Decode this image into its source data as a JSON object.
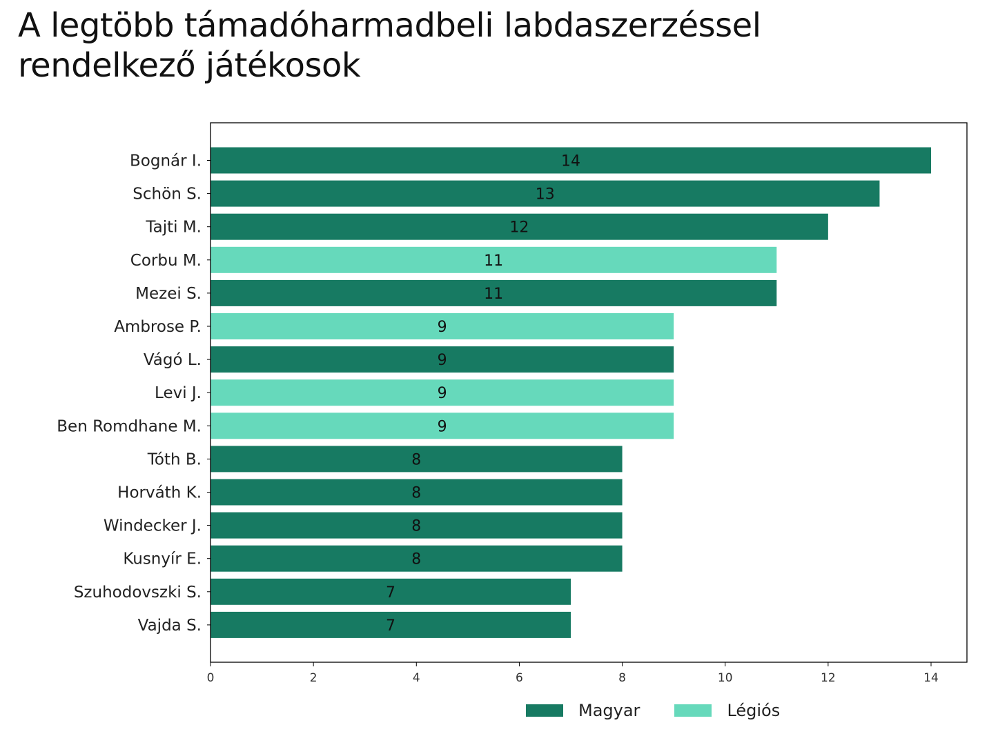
{
  "title_lines": [
    "A legtöbb támadóharmadbeli labdaszerzéssel",
    "rendelkező játékosok"
  ],
  "colors": {
    "Magyar": "#177a62",
    "Légiós": "#66d9bb",
    "axis": "#000000"
  },
  "chart_data": {
    "type": "bar",
    "orientation": "horizontal",
    "title": "A legtöbb támadóharmadbeli labdaszerzéssel rendelkező játékosok",
    "xlabel": "",
    "ylabel": "",
    "xlim": [
      0,
      14.7
    ],
    "xticks": [
      0,
      2,
      4,
      6,
      8,
      10,
      12,
      14
    ],
    "grid": false,
    "legend_position": "bottom-center",
    "legend": [
      "Magyar",
      "Légiós"
    ],
    "categories": [
      "Bognár I.",
      "Schön S.",
      "Tajti M.",
      "Corbu M.",
      "Mezei S.",
      "Ambrose P.",
      "Vágó L.",
      "Levi J.",
      "Ben Romdhane M.",
      "Tóth B.",
      "Horváth K.",
      "Windecker J.",
      "Kusnyír E.",
      "Szuhodovszki S.",
      "Vajda S."
    ],
    "values": [
      14,
      13,
      12,
      11,
      11,
      9,
      9,
      9,
      9,
      8,
      8,
      8,
      8,
      7,
      7
    ],
    "groups": [
      "Magyar",
      "Magyar",
      "Magyar",
      "Légiós",
      "Magyar",
      "Légiós",
      "Magyar",
      "Légiós",
      "Légiós",
      "Magyar",
      "Magyar",
      "Magyar",
      "Magyar",
      "Magyar",
      "Magyar"
    ]
  }
}
